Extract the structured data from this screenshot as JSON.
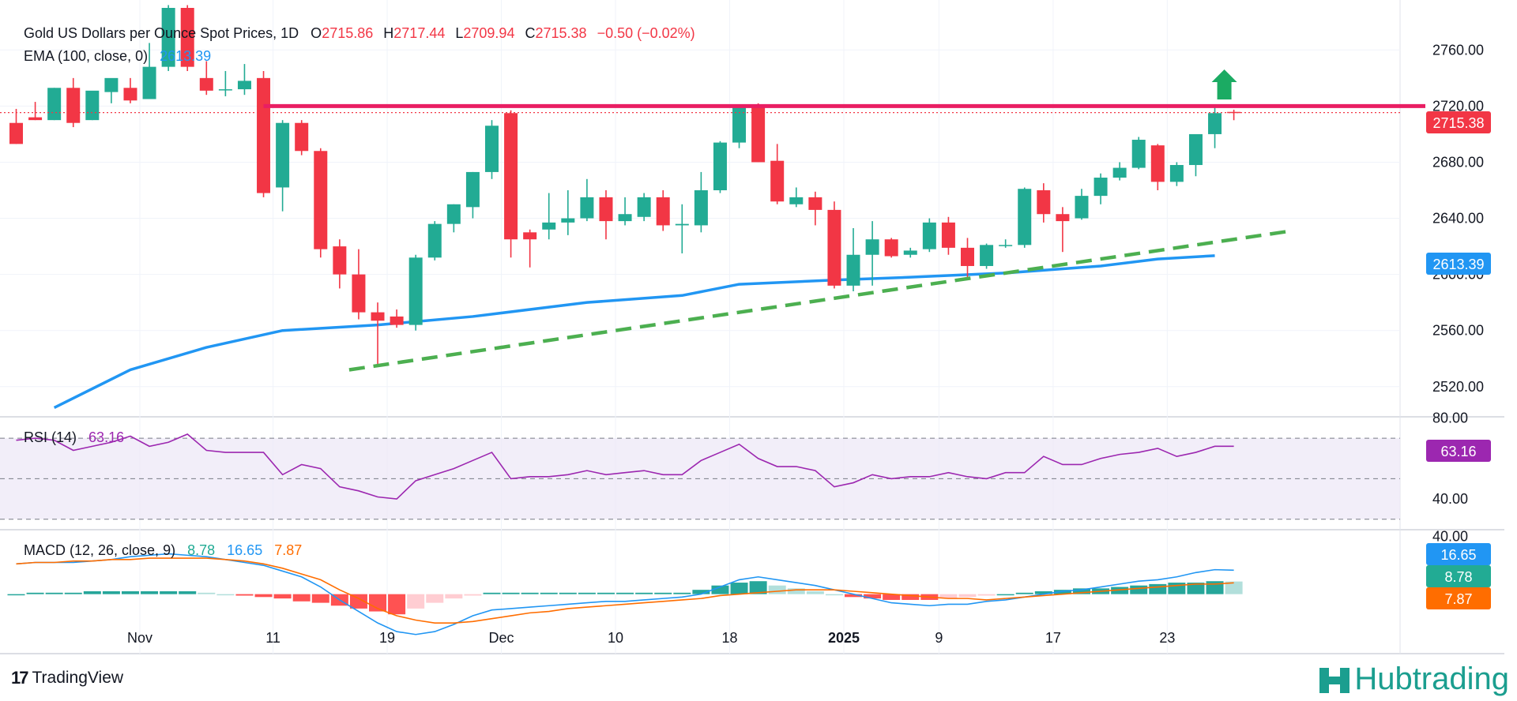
{
  "header": {
    "symbol_title": "Gold US Dollars per Ounce Spot Prices, 1D",
    "o_label": "O",
    "o_value": "2715.86",
    "h_label": "H",
    "h_value": "2717.44",
    "l_label": "L",
    "l_value": "2709.94",
    "c_label": "C",
    "c_value": "2715.38",
    "change": "−0.50 (−0.02%)"
  },
  "ema_legend": {
    "label": "EMA (100, close, 0)",
    "value": "2613.39"
  },
  "rsi_legend": {
    "label": "RSI (14)",
    "value": "63.16"
  },
  "macd_legend": {
    "label": "MACD (12, 26, close, 9)",
    "hist": "8.78",
    "macd": "16.65",
    "signal": "7.87"
  },
  "price_badges": {
    "close": "2715.38",
    "ema": "2613.39"
  },
  "rsi_badge": "63.16",
  "macd_badges": {
    "macd": "16.65",
    "hist": "8.78",
    "signal": "7.87"
  },
  "footer": {
    "tradingview": "TradingView",
    "hubtrading": "Hubtrading"
  },
  "colors": {
    "up": "#22ab94",
    "down": "#f23645",
    "ema": "#2196f3",
    "resistance": "#e91e63",
    "trend": "#4caf50",
    "rsi": "#9c27b0",
    "macd": "#2196f3",
    "signal": "#ff6d00"
  },
  "chart_data": {
    "type": "candlestick",
    "title": "Gold US Dollars per Ounce Spot Prices, 1D",
    "price_axis": {
      "ticks": [
        "2520.00",
        "2560.00",
        "2600.00",
        "2640.00",
        "2680.00",
        "2720.00",
        "2760.00"
      ],
      "tick_values": [
        2520,
        2560,
        2600,
        2640,
        2680,
        2720,
        2760
      ],
      "range": [
        2503,
        2790
      ]
    },
    "x_axis": {
      "labels": [
        "Nov",
        "11",
        "19",
        "Dec",
        "10",
        "18",
        "2025",
        "9",
        "17",
        "23"
      ],
      "label_positions": [
        6.5,
        13.5,
        19.5,
        25.5,
        31.5,
        37.5,
        43.5,
        48.5,
        54.5,
        60.5
      ]
    },
    "candles": [
      [
        2708,
        2718,
        2693,
        2693
      ],
      [
        2712,
        2723,
        2710,
        2710
      ],
      [
        2710,
        2733,
        2710,
        2733
      ],
      [
        2733,
        2740,
        2705,
        2708
      ],
      [
        2710,
        2730,
        2710,
        2731
      ],
      [
        2730,
        2738,
        2722,
        2740
      ],
      [
        2733,
        2740,
        2722,
        2724
      ],
      [
        2725,
        2765,
        2725,
        2748
      ],
      [
        2748,
        2792,
        2745,
        2790
      ],
      [
        2790,
        2792,
        2745,
        2748
      ],
      [
        2740,
        2752,
        2728,
        2731
      ],
      [
        2732,
        2745,
        2727,
        2732
      ],
      [
        2732,
        2750,
        2728,
        2738
      ],
      [
        2740,
        2745,
        2655,
        2658
      ],
      [
        2662,
        2710,
        2645,
        2708
      ],
      [
        2708,
        2710,
        2685,
        2688
      ],
      [
        2688,
        2690,
        2612,
        2618
      ],
      [
        2620,
        2625,
        2590,
        2600
      ],
      [
        2600,
        2618,
        2568,
        2573
      ],
      [
        2573,
        2580,
        2536,
        2567
      ],
      [
        2570,
        2575,
        2562,
        2564
      ],
      [
        2564,
        2614,
        2560,
        2612
      ],
      [
        2612,
        2638,
        2610,
        2636
      ],
      [
        2636,
        2650,
        2630,
        2650
      ],
      [
        2648,
        2673,
        2640,
        2673
      ],
      [
        2673,
        2710,
        2668,
        2706
      ],
      [
        2715,
        2717,
        2612,
        2625
      ],
      [
        2630,
        2632,
        2605,
        2625
      ],
      [
        2632,
        2658,
        2625,
        2637
      ],
      [
        2637,
        2660,
        2628,
        2640
      ],
      [
        2640,
        2668,
        2638,
        2655
      ],
      [
        2655,
        2660,
        2625,
        2638
      ],
      [
        2638,
        2655,
        2635,
        2643
      ],
      [
        2641,
        2658,
        2638,
        2655
      ],
      [
        2655,
        2660,
        2631,
        2635
      ],
      [
        2635,
        2650,
        2615,
        2636
      ],
      [
        2635,
        2673,
        2630,
        2660
      ],
      [
        2660,
        2695,
        2658,
        2694
      ],
      [
        2694,
        2718,
        2690,
        2719
      ],
      [
        2719,
        2722,
        2680,
        2680
      ],
      [
        2681,
        2693,
        2650,
        2652
      ],
      [
        2650,
        2662,
        2648,
        2655
      ],
      [
        2655,
        2659,
        2635,
        2646
      ],
      [
        2646,
        2652,
        2590,
        2592
      ],
      [
        2592,
        2633,
        2588,
        2614
      ],
      [
        2614,
        2638,
        2592,
        2625
      ],
      [
        2625,
        2626,
        2612,
        2613
      ],
      [
        2614,
        2619,
        2612,
        2617
      ],
      [
        2618,
        2640,
        2616,
        2637
      ],
      [
        2637,
        2641,
        2614,
        2619
      ],
      [
        2619,
        2626,
        2596,
        2606
      ],
      [
        2606,
        2622,
        2604,
        2621
      ],
      [
        2621,
        2625,
        2619,
        2621
      ],
      [
        2621,
        2662,
        2619,
        2661
      ],
      [
        2660,
        2665,
        2637,
        2643
      ],
      [
        2643,
        2648,
        2616,
        2638
      ],
      [
        2640,
        2661,
        2639,
        2656
      ],
      [
        2656,
        2672,
        2650,
        2669
      ],
      [
        2669,
        2680,
        2667,
        2676
      ],
      [
        2676,
        2698,
        2675,
        2696
      ],
      [
        2692,
        2693,
        2660,
        2666
      ],
      [
        2666,
        2680,
        2663,
        2678
      ],
      [
        2678,
        2698,
        2670,
        2700
      ],
      [
        2700,
        2720,
        2690,
        2715
      ],
      [
        2715.86,
        2717.44,
        2709.94,
        2715.38
      ]
    ],
    "ema": {
      "label": "EMA (100, close, 0)",
      "points": [
        [
          2,
          2505
        ],
        [
          6,
          2532
        ],
        [
          10,
          2548
        ],
        [
          14,
          2560
        ],
        [
          19,
          2564
        ],
        [
          24,
          2570
        ],
        [
          30,
          2580
        ],
        [
          35,
          2585
        ],
        [
          38,
          2593
        ],
        [
          43,
          2596
        ],
        [
          47,
          2598
        ],
        [
          52,
          2601
        ],
        [
          57,
          2606
        ],
        [
          60,
          2611
        ],
        [
          63,
          2613.39
        ]
      ]
    },
    "resistance": {
      "price": 2720,
      "from_index": 13,
      "to_index": 64
    },
    "trendline": {
      "from": [
        17.5,
        2532
      ],
      "to": [
        67,
        2631
      ]
    },
    "arrow_up": {
      "index": 63.5,
      "price_from": 2718,
      "price_to": 2745
    },
    "rsi": {
      "levels": [
        30,
        50,
        70
      ],
      "ticks": [
        "40.00",
        "80.00"
      ],
      "tick_values": [
        40,
        80
      ],
      "range": [
        26,
        79
      ],
      "values": [
        69,
        70,
        69,
        64,
        66,
        68,
        71,
        66,
        68,
        72,
        64,
        63,
        63,
        63,
        52,
        57,
        55,
        46,
        44,
        41,
        40,
        49,
        52,
        55,
        59,
        63,
        50,
        51,
        51,
        52,
        54,
        52,
        53,
        54,
        52,
        52,
        59,
        63,
        67,
        60,
        56,
        56,
        54,
        46,
        48,
        52,
        50,
        51,
        51,
        53,
        51,
        50,
        53,
        53,
        61,
        57,
        57,
        60,
        62,
        63,
        65,
        61,
        63,
        66,
        66
      ]
    },
    "macd": {
      "ticks": [
        "40.00"
      ],
      "tick_values": [
        40
      ],
      "range": [
        -38,
        42
      ],
      "macd_values": [
        21,
        22,
        22,
        22,
        23,
        24,
        26,
        27,
        28,
        27,
        26,
        24,
        22,
        20,
        16,
        12,
        5,
        -4,
        -12,
        -20,
        -26,
        -28,
        -26,
        -21,
        -15,
        -11,
        -10,
        -9,
        -8,
        -7,
        -6,
        -5,
        -5,
        -4,
        -3,
        -2,
        0,
        5,
        10,
        12,
        10,
        8,
        6,
        3,
        0,
        -3,
        -6,
        -7,
        -8,
        -7,
        -7,
        -5,
        -4,
        -2,
        0,
        2,
        3,
        5,
        7,
        9,
        10,
        12,
        15,
        17,
        16.65
      ],
      "signal_values": [
        21,
        22,
        22,
        23,
        23,
        24,
        24,
        25,
        25,
        25,
        25,
        24,
        23,
        21,
        18,
        14,
        10,
        3,
        -3,
        -10,
        -15,
        -18,
        -20,
        -20,
        -19,
        -17,
        -15,
        -13,
        -12,
        -10,
        -9,
        -8,
        -7,
        -6,
        -5,
        -4,
        -3,
        -1,
        0,
        1,
        2,
        3,
        3,
        3,
        2,
        1,
        0,
        -1,
        -2,
        -3,
        -3,
        -4,
        -3,
        -2,
        -1,
        0,
        1,
        2,
        3,
        4,
        5,
        6,
        7,
        7,
        7.87
      ],
      "hist_values": [
        0,
        1,
        1,
        1,
        2,
        2,
        2,
        2,
        2,
        2,
        1,
        0,
        -1,
        -2,
        -3,
        -5,
        -6,
        -8,
        -10,
        -12,
        -14,
        -10,
        -6,
        -3,
        -1,
        1,
        1,
        1,
        1,
        1,
        1,
        1,
        1,
        1,
        1,
        1,
        3,
        6,
        8,
        9,
        6,
        4,
        2,
        0,
        -2,
        -3,
        -4,
        -4,
        -4,
        -3,
        -2,
        -1,
        0,
        1,
        2,
        3,
        4,
        4,
        5,
        6,
        7,
        8,
        8,
        9,
        8.78
      ]
    }
  }
}
